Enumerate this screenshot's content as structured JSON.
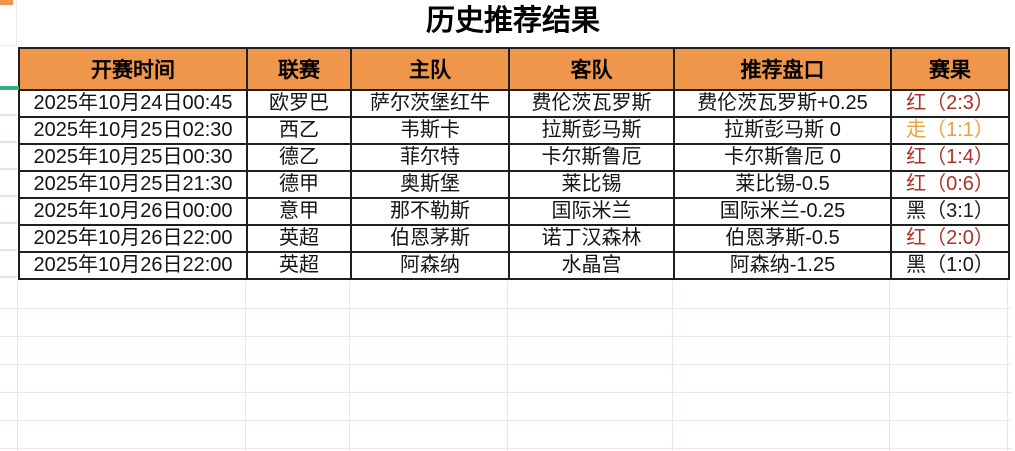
{
  "title": "历史推荐结果",
  "table": {
    "headers": [
      "开赛时间",
      "联赛",
      "主队",
      "客队",
      "推荐盘口",
      "赛果"
    ],
    "rows": [
      {
        "time": "2025年10月24日00:45",
        "league": "欧罗巴",
        "home": "萨尔茨堡红牛",
        "away": "费伦茨瓦罗斯",
        "handicap": "费伦茨瓦罗斯+0.25",
        "result": "红（2:3）",
        "result_type": "red"
      },
      {
        "time": "2025年10月25日02:30",
        "league": "西乙",
        "home": "韦斯卡",
        "away": "拉斯彭马斯",
        "handicap": "拉斯彭马斯 0",
        "result": "走（1:1）",
        "result_type": "draw"
      },
      {
        "time": "2025年10月25日00:30",
        "league": "德乙",
        "home": "菲尔特",
        "away": "卡尔斯鲁厄",
        "handicap": "卡尔斯鲁厄 0",
        "result": "红（1:4）",
        "result_type": "red"
      },
      {
        "time": "2025年10月25日21:30",
        "league": "德甲",
        "home": "奥斯堡",
        "away": "莱比锡",
        "handicap": "莱比锡-0.5",
        "result": "红（0:6）",
        "result_type": "red"
      },
      {
        "time": "2025年10月26日00:00",
        "league": "意甲",
        "home": "那不勒斯",
        "away": "国际米兰",
        "handicap": "国际米兰-0.25",
        "result": "黑（3:1）",
        "result_type": "black"
      },
      {
        "time": "2025年10月26日22:00",
        "league": "英超",
        "home": "伯恩茅斯",
        "away": "诺丁汉森林",
        "handicap": "伯恩茅斯-0.5",
        "result": "红（2:0）",
        "result_type": "red"
      },
      {
        "time": "2025年10月26日22:00",
        "league": "英超",
        "home": "阿森纳",
        "away": "水晶宫",
        "handicap": "阿森纳-1.25",
        "result": "黑（1:0）",
        "result_type": "black"
      }
    ]
  },
  "colors": {
    "header_bg": "#F0964B",
    "result_red": "#AE3127",
    "result_draw": "#E6A23C",
    "result_black": "#1A1A1A",
    "accent_marker": "#2FAF7E"
  }
}
